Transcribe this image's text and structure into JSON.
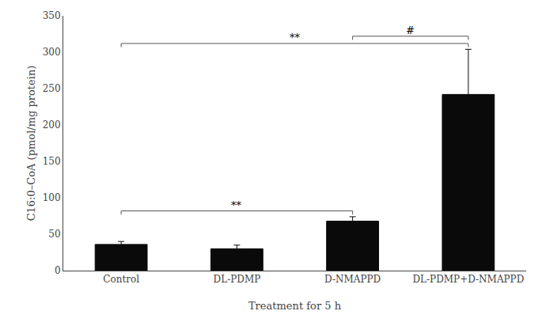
{
  "chart_data": {
    "type": "bar",
    "categories": [
      "Control",
      "DL-PDMP",
      "D-NMAPPD",
      "DL-PDMP+D-NMAPPD"
    ],
    "values": [
      36,
      30,
      68,
      242
    ],
    "errors": [
      4,
      5,
      6,
      62
    ],
    "color": "#0a0a0a",
    "ylim": [
      0,
      350
    ],
    "yticks": [
      0,
      50,
      100,
      150,
      200,
      250,
      300,
      350
    ],
    "ylabel": "C16:0–CoA (pmol/mg protein)",
    "xlabel": "Treatment for 5 h",
    "grid": false,
    "significance_brackets": [
      {
        "from": "Control",
        "to": "D-NMAPPD",
        "y": 82,
        "drop": 5,
        "label": "**",
        "label_y": 84,
        "color": "#555555"
      },
      {
        "from": "Control",
        "to": "DL-PDMP+D-NMAPPD",
        "y": 312,
        "drop": 5,
        "label": "**",
        "label_y": 314,
        "color": "#555555"
      },
      {
        "from": "D-NMAPPD",
        "to": "DL-PDMP+D-NMAPPD",
        "y": 322,
        "drop": 5,
        "label": "#",
        "label_y": 324,
        "color": "#555555"
      }
    ]
  }
}
